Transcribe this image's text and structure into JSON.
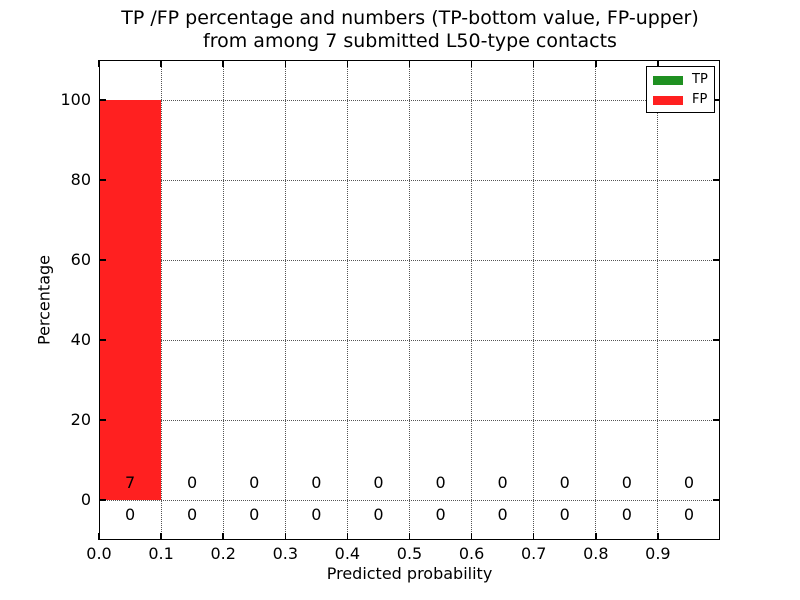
{
  "figure": {
    "title_line1": "TP /FP percentage and numbers (TP-bottom value, FP-upper)",
    "title_line2": "from among 7 submitted L50-type contacts"
  },
  "chart_data": {
    "type": "bar",
    "title": "TP /FP percentage and numbers (TP-bottom value, FP-upper) from among 7 submitted L50-type contacts",
    "xlabel": "Predicted probability",
    "ylabel": "Percentage",
    "xlim": [
      0.0,
      1.0
    ],
    "ylim": [
      -10,
      110
    ],
    "x_tick_labels": [
      "0.0",
      "0.1",
      "0.2",
      "0.3",
      "0.4",
      "0.5",
      "0.6",
      "0.7",
      "0.8",
      "0.9"
    ],
    "y_tick_values": [
      0,
      20,
      40,
      60,
      80,
      100
    ],
    "grid": "dotted",
    "bin_starts": [
      0.0,
      0.1,
      0.2,
      0.3,
      0.4,
      0.5,
      0.6,
      0.7,
      0.8,
      0.9
    ],
    "bin_width": 0.1,
    "series": [
      {
        "name": "TP",
        "color": "#1f9021",
        "count_row": "bottom",
        "percentages": [
          0,
          0,
          0,
          0,
          0,
          0,
          0,
          0,
          0,
          0
        ],
        "counts": [
          0,
          0,
          0,
          0,
          0,
          0,
          0,
          0,
          0,
          0
        ]
      },
      {
        "name": "FP",
        "color": "#ff2020",
        "count_row": "top",
        "percentages": [
          100,
          0,
          0,
          0,
          0,
          0,
          0,
          0,
          0,
          0
        ],
        "counts": [
          7,
          0,
          0,
          0,
          0,
          0,
          0,
          0,
          0,
          0
        ]
      }
    ],
    "legend": {
      "position": "upper right",
      "entries": [
        {
          "label": "TP",
          "color": "#1f9021"
        },
        {
          "label": "FP",
          "color": "#ff2020"
        }
      ]
    }
  }
}
